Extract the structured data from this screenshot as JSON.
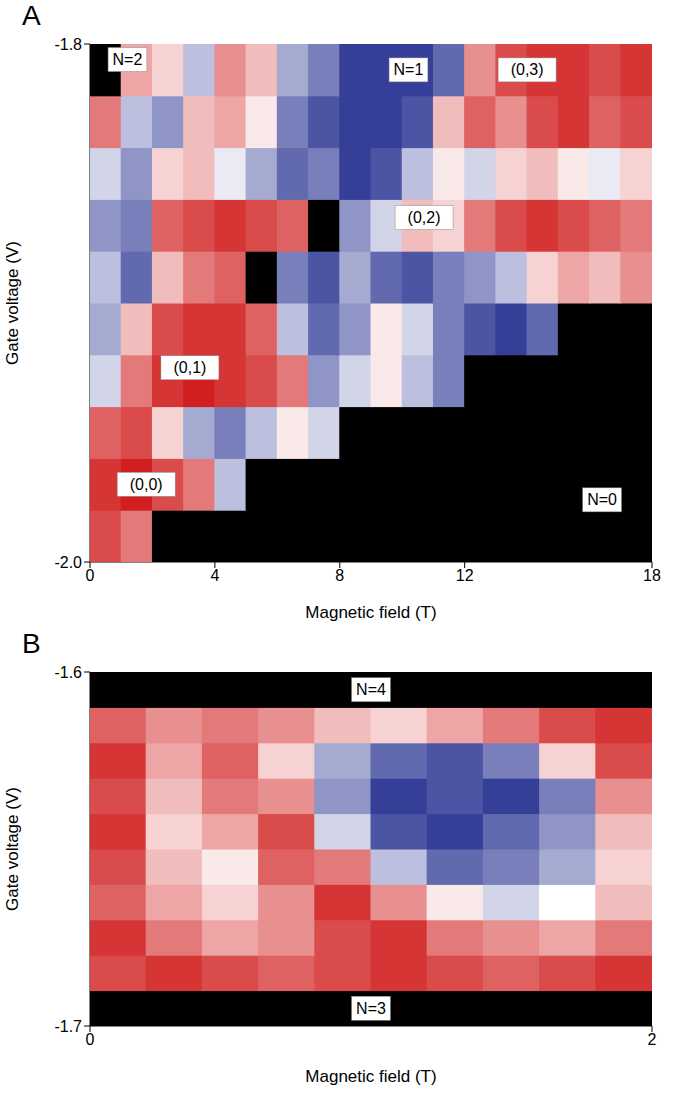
{
  "chart_data": [
    {
      "type": "heatmap",
      "title": "A",
      "x_label": "Magnetic field (T)",
      "y_label": "Gate voltage (V)",
      "xlim": [
        0,
        18
      ],
      "xticks": [
        0,
        4,
        8,
        12,
        18
      ],
      "ylim": [
        -2.0,
        -1.8
      ],
      "yticks": [
        {
          "value": -2.0,
          "label": "-2.0"
        },
        -1.8
      ],
      "color_range": [
        -1,
        1
      ],
      "colors": [
        "#1f2a8c",
        "#ffffff",
        "#d11f1f"
      ],
      "cells": {
        "x": [
          0.5,
          1.5,
          2.5,
          3.5,
          4.5,
          5.5,
          6.5,
          7.5,
          8.5,
          9.5,
          10.5,
          11.5,
          12.5,
          13.5,
          14.5,
          15.5,
          16.5,
          17.5
        ],
        "y": [
          -1.99,
          -1.97,
          -1.95,
          -1.93,
          -1.91,
          -1.89,
          -1.87,
          -1.85,
          -1.83,
          -1.81
        ],
        "z": [
          [
            0.8,
            0.6,
            null,
            null,
            null,
            null,
            null,
            null,
            null,
            null,
            null,
            null,
            null,
            null,
            null,
            null,
            null,
            null
          ],
          [
            0.9,
            1.0,
            0.8,
            0.6,
            -0.3,
            null,
            null,
            null,
            null,
            null,
            null,
            null,
            null,
            null,
            null,
            null,
            null,
            null
          ],
          [
            0.7,
            0.8,
            0.2,
            -0.4,
            -0.6,
            -0.3,
            0.1,
            -0.2,
            null,
            null,
            null,
            null,
            null,
            null,
            null,
            null,
            null,
            null
          ],
          [
            -0.2,
            0.6,
            0.9,
            1.0,
            0.9,
            0.8,
            0.6,
            -0.5,
            -0.2,
            0.1,
            -0.3,
            -0.6,
            null,
            null,
            null,
            null,
            null,
            null
          ],
          [
            -0.4,
            0.3,
            0.8,
            0.9,
            0.9,
            0.7,
            -0.3,
            -0.7,
            -0.5,
            0.1,
            -0.2,
            -0.6,
            -0.8,
            -0.9,
            -0.7,
            null,
            null,
            null
          ],
          [
            -0.3,
            -0.7,
            0.3,
            0.6,
            0.7,
            null,
            -0.6,
            -0.8,
            -0.4,
            -0.7,
            -0.8,
            -0.6,
            -0.5,
            -0.3,
            0.2,
            0.4,
            0.3,
            0.5
          ],
          [
            -0.5,
            -0.6,
            0.7,
            0.8,
            0.9,
            0.8,
            0.7,
            null,
            -0.5,
            -0.2,
            0.3,
            0.2,
            0.6,
            0.8,
            0.9,
            0.8,
            0.7,
            0.6
          ],
          [
            -0.2,
            -0.5,
            0.2,
            0.3,
            -0.1,
            -0.4,
            -0.7,
            -0.6,
            -0.9,
            -0.8,
            -0.3,
            0.1,
            -0.2,
            0.2,
            0.3,
            0.1,
            -0.1,
            0.2
          ],
          [
            0.6,
            -0.3,
            -0.5,
            0.3,
            0.4,
            0.1,
            -0.6,
            -0.8,
            -0.9,
            -0.9,
            -0.8,
            0.3,
            0.7,
            0.5,
            0.8,
            0.9,
            0.7,
            0.8
          ],
          [
            null,
            0.4,
            0.2,
            -0.3,
            0.5,
            0.3,
            -0.4,
            -0.6,
            -0.9,
            -0.9,
            -0.9,
            -0.7,
            0.5,
            0.8,
            0.9,
            0.9,
            0.8,
            0.9
          ]
        ]
      },
      "annotations": [
        {
          "text": "N=2",
          "x": 1.2,
          "y": -1.806
        },
        {
          "text": "N=1",
          "x": 10.2,
          "y": -1.81
        },
        {
          "text": "(0,3)",
          "x": 14.0,
          "y": -1.81
        },
        {
          "text": "(0,2)",
          "x": 10.7,
          "y": -1.867
        },
        {
          "text": "(0,1)",
          "x": 3.2,
          "y": -1.925
        },
        {
          "text": "(0,0)",
          "x": 1.8,
          "y": -1.97
        },
        {
          "text": "N=0",
          "x": 16.4,
          "y": -1.976
        }
      ]
    },
    {
      "type": "heatmap",
      "title": "B",
      "x_label": "Magnetic field (T)",
      "y_label": "Gate voltage (V)",
      "xlim": [
        0,
        2
      ],
      "xticks": [
        0,
        2
      ],
      "ylim": [
        -1.7,
        -1.6
      ],
      "yticks": [
        -1.7,
        -1.6
      ],
      "color_range": [
        -1,
        1
      ],
      "colors": [
        "#1f2a8c",
        "#ffffff",
        "#d11f1f"
      ],
      "cells": {
        "x": [
          0.1,
          0.3,
          0.5,
          0.7,
          0.9,
          1.1,
          1.3,
          1.5,
          1.7,
          1.9
        ],
        "y": [
          -1.695,
          -1.685,
          -1.675,
          -1.665,
          -1.655,
          -1.645,
          -1.635,
          -1.625,
          -1.615,
          -1.605
        ],
        "z": [
          [
            null,
            null,
            null,
            null,
            null,
            null,
            null,
            null,
            null,
            null
          ],
          [
            0.8,
            0.9,
            0.8,
            0.7,
            0.8,
            0.9,
            0.8,
            0.7,
            0.8,
            0.9
          ],
          [
            0.9,
            0.6,
            0.4,
            0.5,
            0.8,
            0.9,
            0.6,
            0.5,
            0.4,
            0.6
          ],
          [
            0.7,
            0.4,
            0.2,
            0.5,
            0.9,
            0.5,
            0.1,
            -0.2,
            0.0,
            0.3
          ],
          [
            0.8,
            0.3,
            0.1,
            0.7,
            0.6,
            -0.3,
            -0.7,
            -0.6,
            -0.4,
            0.2
          ],
          [
            0.9,
            0.2,
            0.4,
            0.8,
            -0.2,
            -0.8,
            -0.9,
            -0.7,
            -0.5,
            0.3
          ],
          [
            0.8,
            0.3,
            0.6,
            0.5,
            -0.5,
            -0.9,
            -0.8,
            -0.9,
            -0.6,
            0.5
          ],
          [
            0.9,
            0.4,
            0.7,
            0.2,
            -0.4,
            -0.7,
            -0.8,
            -0.6,
            0.2,
            0.8
          ],
          [
            0.7,
            0.5,
            0.6,
            0.5,
            0.3,
            0.2,
            0.4,
            0.6,
            0.8,
            0.9
          ],
          [
            null,
            null,
            null,
            null,
            null,
            null,
            null,
            null,
            null,
            null
          ]
        ]
      },
      "annotations": [
        {
          "text": "N=4",
          "x": 1.0,
          "y": -1.605
        },
        {
          "text": "N=3",
          "x": 1.0,
          "y": -1.695
        }
      ]
    }
  ]
}
